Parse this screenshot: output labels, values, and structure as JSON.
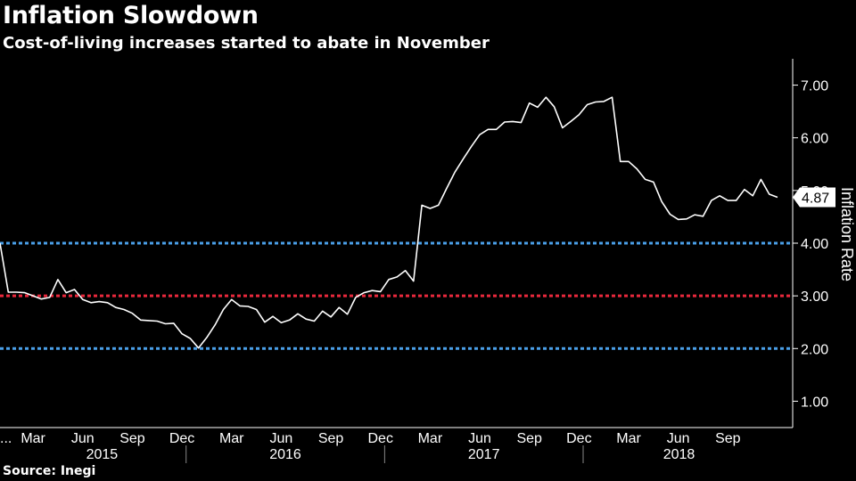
{
  "header": {
    "title": "Inflation Slowdown",
    "subtitle": "Cost-of-living increases started to abate in November"
  },
  "footer": {
    "source": "Source: Inegi"
  },
  "colors": {
    "line": "#ffffff",
    "band": "#4a9fe8",
    "target": "#e8283c",
    "background": "#000000"
  },
  "chart_data": {
    "type": "line",
    "title": "Inflation Slowdown",
    "subtitle": "Cost-of-living increases started to abate in November",
    "ylabel": "Inflation Rate",
    "ylim": [
      0.5,
      7.5
    ],
    "y_ticks": [
      "1.00",
      "2.00",
      "3.00",
      "4.00",
      "5.00",
      "6.00",
      "7.00"
    ],
    "x_month_labels": [
      "...",
      "Mar",
      "Jun",
      "Sep",
      "Dec",
      "Mar",
      "Jun",
      "Sep",
      "Dec",
      "Mar",
      "Jun",
      "Sep",
      "Dec",
      "Mar",
      "Jun",
      "Sep"
    ],
    "x_year_labels": [
      "2015",
      "2016",
      "2017",
      "2018"
    ],
    "last_value_label": "4.87",
    "reference_lines": [
      {
        "value": 4.0,
        "color": "#4a9fe8",
        "style": "dotted"
      },
      {
        "value": 3.0,
        "color": "#e8283c",
        "style": "dotted"
      },
      {
        "value": 2.0,
        "color": "#4a9fe8",
        "style": "dotted"
      }
    ],
    "series": [
      {
        "values": [
          4.0,
          3.07,
          3.07,
          3.06,
          3.0,
          2.94,
          2.97,
          3.31,
          3.06,
          3.12,
          2.93,
          2.87,
          2.89,
          2.87,
          2.78,
          2.74,
          2.67,
          2.54,
          2.53,
          2.52,
          2.47,
          2.48,
          2.28,
          2.19,
          2.01,
          2.21,
          2.45,
          2.74,
          2.93,
          2.81,
          2.8,
          2.74,
          2.5,
          2.61,
          2.49,
          2.54,
          2.66,
          2.56,
          2.52,
          2.71,
          2.6,
          2.78,
          2.65,
          2.97,
          3.06,
          3.1,
          3.08,
          3.31,
          3.36,
          3.48,
          3.28,
          4.72,
          4.66,
          4.72,
          5.04,
          5.35,
          5.6,
          5.84,
          6.06,
          6.16,
          6.16,
          6.3,
          6.31,
          6.29,
          6.66,
          6.58,
          6.77,
          6.59,
          6.19,
          6.31,
          6.44,
          6.63,
          6.68,
          6.69,
          6.77,
          5.55,
          5.55,
          5.41,
          5.21,
          5.16,
          4.79,
          4.55,
          4.45,
          4.46,
          4.54,
          4.51,
          4.81,
          4.9,
          4.81,
          4.81,
          5.02,
          4.9,
          5.21,
          4.93,
          4.87
        ]
      }
    ]
  }
}
